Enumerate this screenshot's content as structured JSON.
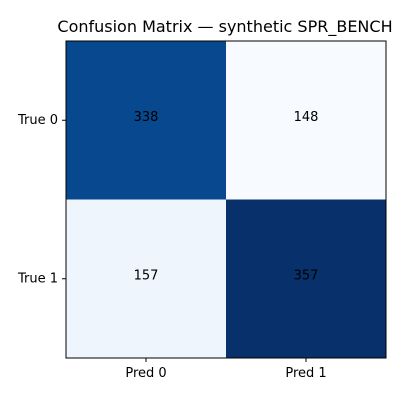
{
  "chart_data": {
    "type": "heatmap",
    "title": "Confusion Matrix — synthetic SPR_BENCH",
    "row_labels": [
      "True 0",
      "True 1"
    ],
    "col_labels": [
      "Pred 0",
      "Pred 1"
    ],
    "values": [
      [
        338,
        148
      ],
      [
        157,
        357
      ]
    ],
    "colormap": "Blues",
    "cell_label_color": "#000000",
    "axis_color": "#000000"
  }
}
